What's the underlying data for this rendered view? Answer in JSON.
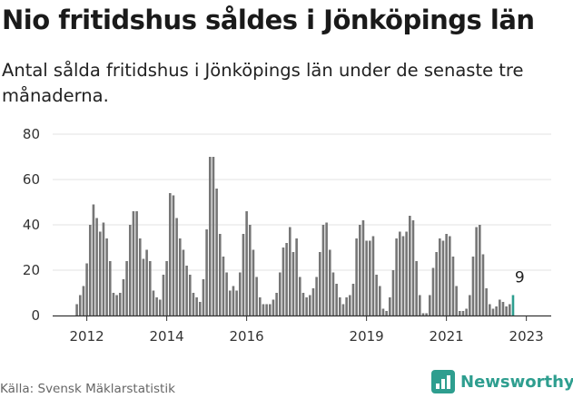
{
  "title": "Nio fritidshus såldes i Jönköpings län",
  "subtitle": "Antal sålda fritidshus i Jönköpings län under de senaste tre månaderna.",
  "source": "Källa: Svensk Mäklarstatistik",
  "brand": {
    "name": "Newsworthy",
    "icon": "newsworthy-logo-icon",
    "color": "#2e9e8f"
  },
  "colors": {
    "bars": "#767676",
    "highlight": "#2e9e8f",
    "grid": "#e3e3e3"
  },
  "chart_data": {
    "type": "bar",
    "x_start": "2011-10",
    "x_unit": "month",
    "ylim": [
      0,
      80
    ],
    "y_ticks": [
      0,
      20,
      40,
      60,
      80
    ],
    "x_tick_labels": [
      {
        "label": "2012",
        "index": 3
      },
      {
        "label": "2014",
        "index": 27
      },
      {
        "label": "2016",
        "index": 51
      },
      {
        "label": "2019",
        "index": 87
      },
      {
        "label": "2021",
        "index": 111
      },
      {
        "label": "2023",
        "index": 135
      }
    ],
    "grid": true,
    "values": [
      5,
      9,
      13,
      23,
      40,
      49,
      43,
      37,
      41,
      34,
      24,
      10,
      9,
      10,
      16,
      24,
      40,
      46,
      46,
      34,
      25,
      29,
      24,
      11,
      8,
      7,
      18,
      24,
      54,
      53,
      43,
      34,
      29,
      22,
      18,
      10,
      8,
      6,
      16,
      38,
      70,
      70,
      56,
      36,
      26,
      19,
      11,
      13,
      11,
      19,
      36,
      46,
      40,
      29,
      17,
      8,
      5,
      5,
      5,
      7,
      10,
      19,
      30,
      32,
      39,
      28,
      34,
      17,
      10,
      8,
      9,
      12,
      17,
      28,
      40,
      41,
      29,
      19,
      14,
      8,
      5,
      8,
      9,
      14,
      34,
      40,
      42,
      33,
      33,
      35,
      18,
      13,
      3,
      2,
      8,
      20,
      34,
      37,
      35,
      37,
      44,
      42,
      24,
      9,
      1,
      1,
      9,
      21,
      28,
      34,
      33,
      36,
      35,
      26,
      13,
      2,
      2,
      3,
      9,
      26,
      39,
      40,
      27,
      12,
      5,
      3,
      4,
      7,
      6,
      4,
      5,
      9
    ],
    "highlight_last": true,
    "annotation": {
      "text": "9",
      "index": 133
    }
  }
}
